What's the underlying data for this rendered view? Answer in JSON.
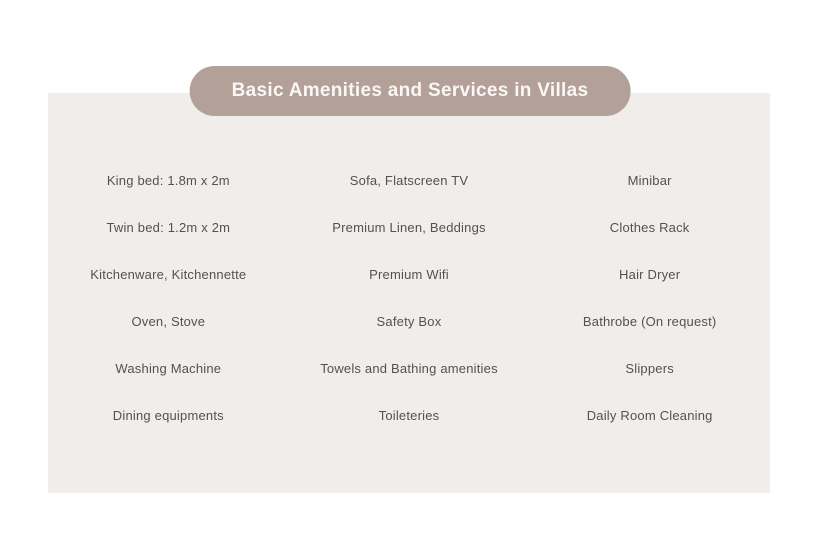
{
  "title": "Basic Amenities and Services in Villas",
  "colors": {
    "pill_bg": "#b3a099",
    "panel_bg": "#f1edeb",
    "item_text": "#525252",
    "title_text": "#fbf7f4",
    "page_bg": "#ffffff"
  },
  "amenities": {
    "columns": [
      {
        "items": [
          "King bed: 1.8m x 2m",
          "Twin bed: 1.2m x 2m",
          "Kitchenware, Kitchennette",
          "Oven, Stove",
          "Washing Machine",
          "Dining equipments"
        ]
      },
      {
        "items": [
          "Sofa, Flatscreen TV",
          "Premium Linen, Beddings",
          "Premium Wifi",
          "Safety Box",
          "Towels and Bathing amenities",
          "Toileteries"
        ]
      },
      {
        "items": [
          "Minibar",
          "Clothes Rack",
          "Hair Dryer",
          "Bathrobe (On request)",
          "Slippers",
          "Daily Room Cleaning"
        ]
      }
    ]
  }
}
